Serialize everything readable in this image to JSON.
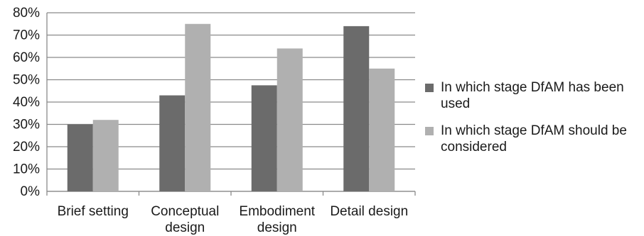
{
  "chart_data": {
    "type": "bar",
    "categories": [
      [
        "Brief setting"
      ],
      [
        "Conceptual",
        "design"
      ],
      [
        "Embodiment",
        "design"
      ],
      [
        "Detail design"
      ]
    ],
    "series": [
      {
        "name": "In which stage DfAM has been used",
        "values": [
          30,
          43,
          47.5,
          74
        ],
        "color": "#6b6b6b"
      },
      {
        "name": "In which stage DfAM should be considered",
        "values": [
          32,
          75,
          64,
          55
        ],
        "color": "#b0b0b0"
      }
    ],
    "ylim": [
      0,
      80
    ],
    "yticks": [
      "0%",
      "10%",
      "20%",
      "30%",
      "40%",
      "50%",
      "60%",
      "70%",
      "80%"
    ],
    "grid": true,
    "legend_position": "right",
    "title": "",
    "xlabel": "",
    "ylabel": ""
  }
}
